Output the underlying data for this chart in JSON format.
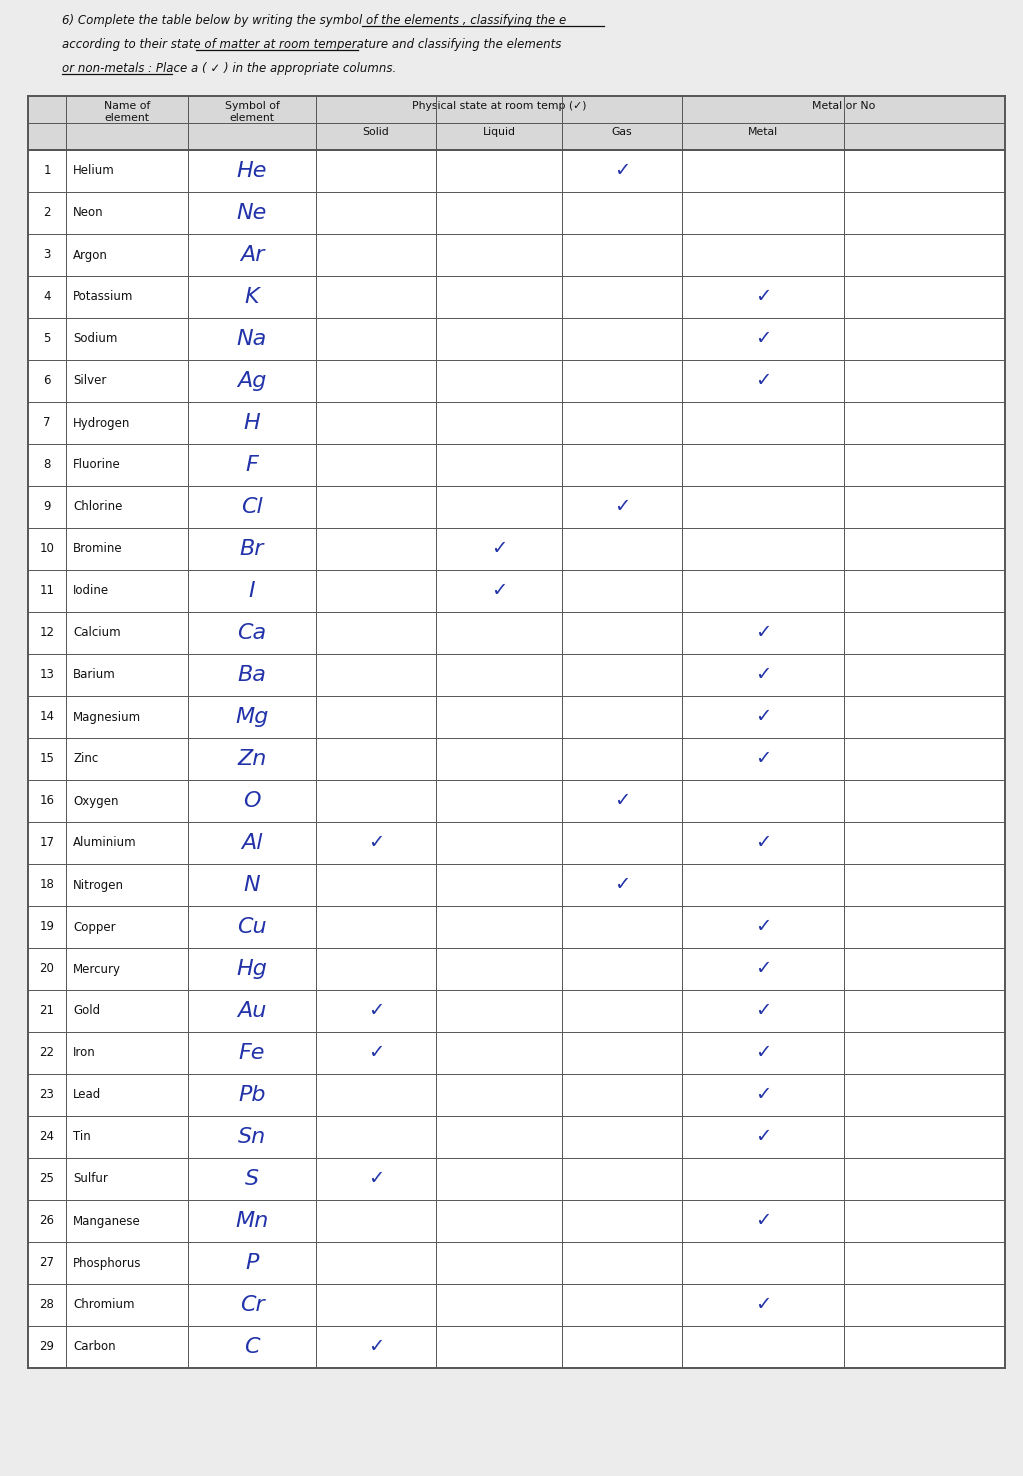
{
  "title_line1": "6) Complete the table below by writing the symbol of the elements , classifying the e",
  "title_line2": "according to their state of matter at room temperature and classifying the elements",
  "title_line3": "or non-metals : Place a ( ✓ ) in the appropriate columns.",
  "elements": [
    {
      "num": 1,
      "name": "Helium",
      "symbol": "He",
      "solid": 0,
      "liquid": 0,
      "gas": 1,
      "metal": 0,
      "nonmetal": 0
    },
    {
      "num": 2,
      "name": "Neon",
      "symbol": "Ne",
      "solid": 0,
      "liquid": 0,
      "gas": 0,
      "metal": 0,
      "nonmetal": 0
    },
    {
      "num": 3,
      "name": "Argon",
      "symbol": "Ar",
      "solid": 0,
      "liquid": 0,
      "gas": 0,
      "metal": 0,
      "nonmetal": 0
    },
    {
      "num": 4,
      "name": "Potassium",
      "symbol": "K",
      "solid": 0,
      "liquid": 0,
      "gas": 0,
      "metal": 1,
      "nonmetal": 0
    },
    {
      "num": 5,
      "name": "Sodium",
      "symbol": "Na",
      "solid": 0,
      "liquid": 0,
      "gas": 0,
      "metal": 1,
      "nonmetal": 0
    },
    {
      "num": 6,
      "name": "Silver",
      "symbol": "Ag",
      "solid": 0,
      "liquid": 0,
      "gas": 0,
      "metal": 1,
      "nonmetal": 0
    },
    {
      "num": 7,
      "name": "Hydrogen",
      "symbol": "H",
      "solid": 0,
      "liquid": 0,
      "gas": 0,
      "metal": 0,
      "nonmetal": 0
    },
    {
      "num": 8,
      "name": "Fluorine",
      "symbol": "F",
      "solid": 0,
      "liquid": 0,
      "gas": 0,
      "metal": 0,
      "nonmetal": 0
    },
    {
      "num": 9,
      "name": "Chlorine",
      "symbol": "Cl",
      "solid": 0,
      "liquid": 0,
      "gas": 1,
      "metal": 0,
      "nonmetal": 0
    },
    {
      "num": 10,
      "name": "Bromine",
      "symbol": "Br",
      "solid": 0,
      "liquid": 1,
      "gas": 0,
      "metal": 0,
      "nonmetal": 0
    },
    {
      "num": 11,
      "name": "Iodine",
      "symbol": "I",
      "solid": 0,
      "liquid": 1,
      "gas": 0,
      "metal": 0,
      "nonmetal": 0
    },
    {
      "num": 12,
      "name": "Calcium",
      "symbol": "Ca",
      "solid": 0,
      "liquid": 0,
      "gas": 0,
      "metal": 1,
      "nonmetal": 0
    },
    {
      "num": 13,
      "name": "Barium",
      "symbol": "Ba",
      "solid": 0,
      "liquid": 0,
      "gas": 0,
      "metal": 1,
      "nonmetal": 0
    },
    {
      "num": 14,
      "name": "Magnesium",
      "symbol": "Mg",
      "solid": 0,
      "liquid": 0,
      "gas": 0,
      "metal": 1,
      "nonmetal": 0
    },
    {
      "num": 15,
      "name": "Zinc",
      "symbol": "Zn",
      "solid": 0,
      "liquid": 0,
      "gas": 0,
      "metal": 1,
      "nonmetal": 0
    },
    {
      "num": 16,
      "name": "Oxygen",
      "symbol": "O",
      "solid": 0,
      "liquid": 0,
      "gas": 1,
      "metal": 0,
      "nonmetal": 0
    },
    {
      "num": 17,
      "name": "Aluminium",
      "symbol": "Al",
      "solid": 1,
      "liquid": 0,
      "gas": 0,
      "metal": 1,
      "nonmetal": 0
    },
    {
      "num": 18,
      "name": "Nitrogen",
      "symbol": "N",
      "solid": 0,
      "liquid": 0,
      "gas": 1,
      "metal": 0,
      "nonmetal": 0
    },
    {
      "num": 19,
      "name": "Copper",
      "symbol": "Cu",
      "solid": 0,
      "liquid": 0,
      "gas": 0,
      "metal": 1,
      "nonmetal": 0
    },
    {
      "num": 20,
      "name": "Mercury",
      "symbol": "Hg",
      "solid": 0,
      "liquid": 0,
      "gas": 0,
      "metal": 1,
      "nonmetal": 0
    },
    {
      "num": 21,
      "name": "Gold",
      "symbol": "Au",
      "solid": 1,
      "liquid": 0,
      "gas": 0,
      "metal": 1,
      "nonmetal": 0
    },
    {
      "num": 22,
      "name": "Iron",
      "symbol": "Fe",
      "solid": 1,
      "liquid": 0,
      "gas": 0,
      "metal": 1,
      "nonmetal": 0
    },
    {
      "num": 23,
      "name": "Lead",
      "symbol": "Pb",
      "solid": 0,
      "liquid": 0,
      "gas": 0,
      "metal": 1,
      "nonmetal": 0
    },
    {
      "num": 24,
      "name": "Tin",
      "symbol": "Sn",
      "solid": 0,
      "liquid": 0,
      "gas": 0,
      "metal": 1,
      "nonmetal": 0
    },
    {
      "num": 25,
      "name": "Sulfur",
      "symbol": "S",
      "solid": 1,
      "liquid": 0,
      "gas": 0,
      "metal": 0,
      "nonmetal": 0
    },
    {
      "num": 26,
      "name": "Manganese",
      "symbol": "Mn",
      "solid": 0,
      "liquid": 0,
      "gas": 0,
      "metal": 1,
      "nonmetal": 0
    },
    {
      "num": 27,
      "name": "Phosphorus",
      "symbol": "P",
      "solid": 0,
      "liquid": 0,
      "gas": 0,
      "metal": 0,
      "nonmetal": 0
    },
    {
      "num": 28,
      "name": "Chromium",
      "symbol": "Cr",
      "solid": 0,
      "liquid": 0,
      "gas": 0,
      "metal": 1,
      "nonmetal": 0
    },
    {
      "num": 29,
      "name": "Carbon",
      "symbol": "C",
      "solid": 1,
      "liquid": 0,
      "gas": 0,
      "metal": 0,
      "nonmetal": 0
    }
  ],
  "bg_color": "#ececec",
  "check_color": "#2233aa",
  "symbol_color": "#2233aa",
  "text_color": "#111111",
  "border_color": "#555555"
}
